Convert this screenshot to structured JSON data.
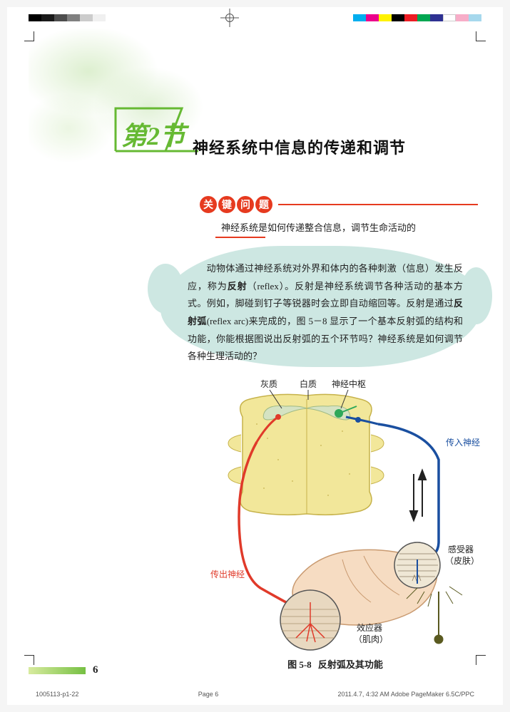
{
  "registration": {
    "dark_swatches": [
      "k100",
      "k90",
      "k70",
      "k50",
      "k20",
      "k5"
    ],
    "color_swatches": [
      "c-cy",
      "c-ma",
      "c-ye",
      "c-bk",
      "c-rd",
      "c-gr",
      "c-bl",
      "c-wh",
      "c-pk",
      "c-lb"
    ]
  },
  "section": {
    "number_label": "第2节",
    "title": "神经系统中信息的传递和调节",
    "accent_color": "#66b933"
  },
  "key_question": {
    "badge_chars": [
      "关",
      "键",
      "问",
      "题"
    ],
    "text": "神经系统是如何传递整合信息，调节生命活动的",
    "badge_color": "#e63a1f"
  },
  "intro_paragraph": {
    "bg_color": "#cde7e2",
    "html_parts": [
      "　　动物体通过神经系统对外界和体内的各种刺激（信息）发生反应，称为",
      {
        "b": "反射"
      },
      "（reflex）。反射是神经系统调节各种活动的基本方式。例如，脚碰到钉子等锐器时会立即自动缩回等。反射是通过",
      {
        "b": "反射弧"
      },
      "(reflex arc)来完成的，图 5－8 显示了一个基本反射弧的结构和功能，你能根据图说出反射弧的五个环节吗？神经系统是如何调节各种生理活动的？"
    ]
  },
  "diagram": {
    "labels": {
      "gray_matter": "灰质",
      "white_matter": "白质",
      "nerve_center": "神经中枢",
      "afferent": "传入神经",
      "efferent": "传出神经",
      "receptor_l1": "感受器",
      "receptor_l2": "（皮肤）",
      "effector_l1": "效应器",
      "effector_l2": "（肌肉）"
    },
    "colors": {
      "spinal_fill": "#f2e79a",
      "spinal_stroke": "#c6b24a",
      "gray_fill": "#d5e3c3",
      "afferent": "#1a4fa0",
      "efferent": "#e03a2a",
      "hand_fill": "#f6dcc2",
      "hand_stroke": "#c99a70",
      "nerve_green": "#2ea85a",
      "muscle_fill": "#e8d8c0",
      "skin_detail": "#8a7a60",
      "pin": "#5a5a20"
    }
  },
  "figure_caption": {
    "number": "图 5-8",
    "text": "反射弧及其功能"
  },
  "page_number": "6",
  "footer": {
    "left": "1005113-p1-22",
    "mid": "Page 6",
    "right": "2011.4.7, 4:32 AM   Adobe PageMaker 6.5C/PPC"
  }
}
